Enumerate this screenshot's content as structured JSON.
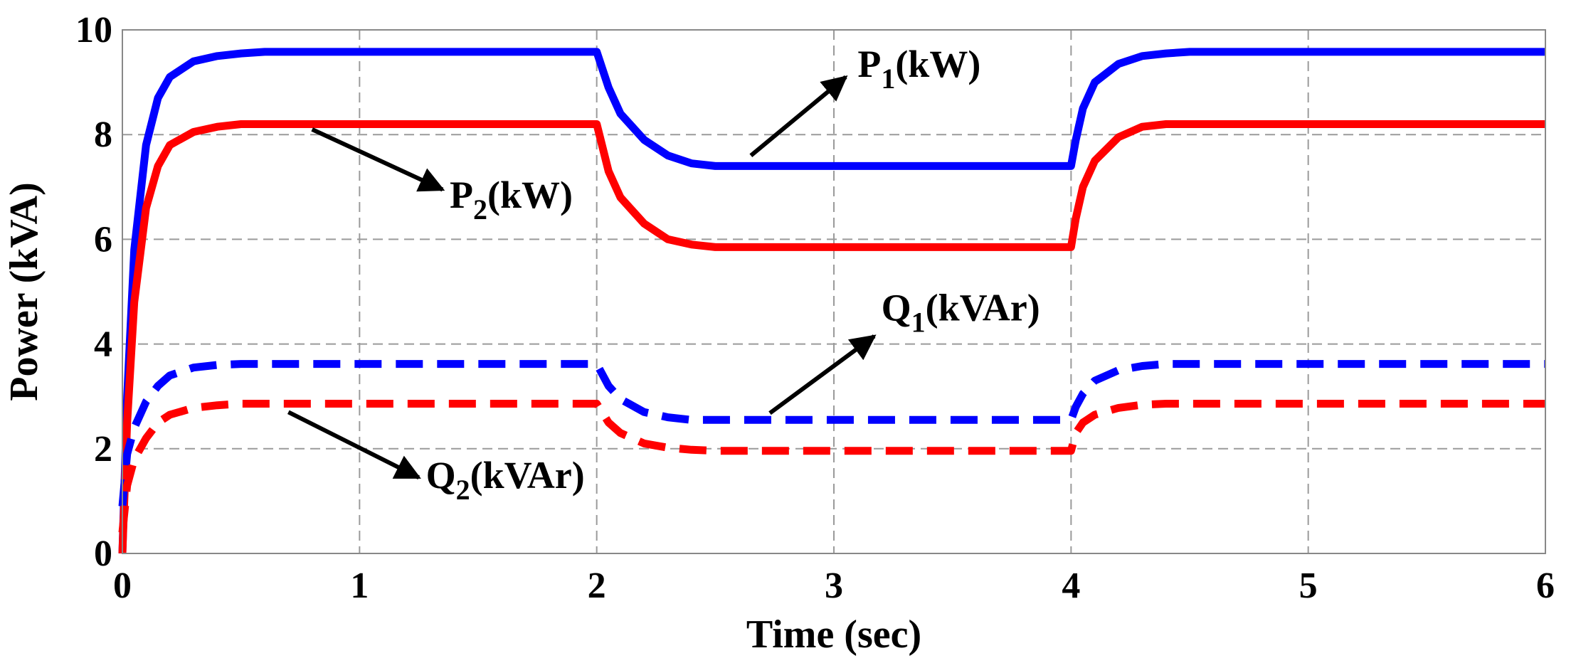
{
  "chart_data": {
    "type": "line",
    "xlabel": "Time (sec)",
    "ylabel": "Power (kVA)",
    "xlim": [
      0,
      6
    ],
    "ylim": [
      0,
      10
    ],
    "xticks": [
      0,
      1,
      2,
      3,
      4,
      5,
      6
    ],
    "yticks": [
      0,
      2,
      4,
      6,
      8,
      10
    ],
    "grid": true,
    "series": [
      {
        "name": "P1(kW)",
        "color": "#0000ff",
        "style": "solid",
        "x": [
          0,
          0.02,
          0.05,
          0.1,
          0.15,
          0.2,
          0.3,
          0.4,
          0.5,
          0.6,
          2.0,
          2.05,
          2.1,
          2.2,
          2.3,
          2.4,
          2.5,
          4.0,
          4.02,
          4.05,
          4.1,
          4.2,
          4.3,
          4.4,
          4.5,
          6.0
        ],
        "y": [
          0,
          3.0,
          5.8,
          7.8,
          8.7,
          9.1,
          9.4,
          9.5,
          9.55,
          9.58,
          9.58,
          8.9,
          8.4,
          7.9,
          7.6,
          7.45,
          7.4,
          7.4,
          7.9,
          8.5,
          9.0,
          9.35,
          9.5,
          9.55,
          9.58,
          9.58
        ]
      },
      {
        "name": "P2(kW)",
        "color": "#ff0000",
        "style": "solid",
        "x": [
          0,
          0.02,
          0.05,
          0.1,
          0.15,
          0.2,
          0.3,
          0.4,
          0.5,
          2.0,
          2.05,
          2.1,
          2.2,
          2.3,
          2.4,
          2.5,
          4.0,
          4.02,
          4.05,
          4.1,
          4.2,
          4.3,
          4.4,
          6.0
        ],
        "y": [
          0,
          2.5,
          4.8,
          6.6,
          7.4,
          7.8,
          8.05,
          8.15,
          8.2,
          8.2,
          7.3,
          6.8,
          6.3,
          6.0,
          5.9,
          5.85,
          5.85,
          6.4,
          7.0,
          7.5,
          7.95,
          8.15,
          8.2,
          8.2
        ]
      },
      {
        "name": "Q1(kVAr)",
        "color": "#0000ff",
        "style": "dashed",
        "x": [
          0,
          0.02,
          0.05,
          0.1,
          0.15,
          0.2,
          0.3,
          0.4,
          0.5,
          2.0,
          2.05,
          2.1,
          2.2,
          2.3,
          2.4,
          2.5,
          4.0,
          4.02,
          4.05,
          4.1,
          4.2,
          4.3,
          4.4,
          6.0
        ],
        "y": [
          0.9,
          1.9,
          2.4,
          2.9,
          3.2,
          3.4,
          3.55,
          3.6,
          3.62,
          3.62,
          3.2,
          2.95,
          2.7,
          2.6,
          2.55,
          2.55,
          2.55,
          2.8,
          3.05,
          3.3,
          3.5,
          3.58,
          3.62,
          3.62
        ]
      },
      {
        "name": "Q2(kVAr)",
        "color": "#ff0000",
        "style": "dashed",
        "x": [
          0,
          0.02,
          0.05,
          0.1,
          0.15,
          0.2,
          0.3,
          0.4,
          0.5,
          2.0,
          2.05,
          2.1,
          2.2,
          2.3,
          2.4,
          2.5,
          4.0,
          4.02,
          4.05,
          4.1,
          4.2,
          4.3,
          4.4,
          6.0
        ],
        "y": [
          0.4,
          1.3,
          1.8,
          2.2,
          2.5,
          2.65,
          2.78,
          2.83,
          2.86,
          2.86,
          2.5,
          2.3,
          2.1,
          2.02,
          1.98,
          1.96,
          1.96,
          2.3,
          2.5,
          2.65,
          2.78,
          2.84,
          2.86,
          2.86
        ]
      }
    ],
    "annotations": [
      {
        "text": "P",
        "sub": "1",
        "suffix": "(kW)",
        "arrow_from": [
          2.65,
          7.6
        ],
        "arrow_to": [
          3.05,
          9.1
        ],
        "text_at": [
          3.1,
          9.1
        ]
      },
      {
        "text": "P",
        "sub": "2",
        "suffix": "(kW)",
        "arrow_from": [
          0.8,
          8.1
        ],
        "arrow_to": [
          1.35,
          6.95
        ],
        "text_at": [
          1.38,
          6.6
        ]
      },
      {
        "text": "Q",
        "sub": "1",
        "suffix": "(kVAr)",
        "arrow_from": [
          2.73,
          2.68
        ],
        "arrow_to": [
          3.17,
          4.15
        ],
        "text_at": [
          3.2,
          4.45
        ]
      },
      {
        "text": "Q",
        "sub": "2",
        "suffix": "(kVAr)",
        "arrow_from": [
          0.7,
          2.7
        ],
        "arrow_to": [
          1.25,
          1.45
        ],
        "text_at": [
          1.28,
          1.25
        ]
      }
    ]
  }
}
